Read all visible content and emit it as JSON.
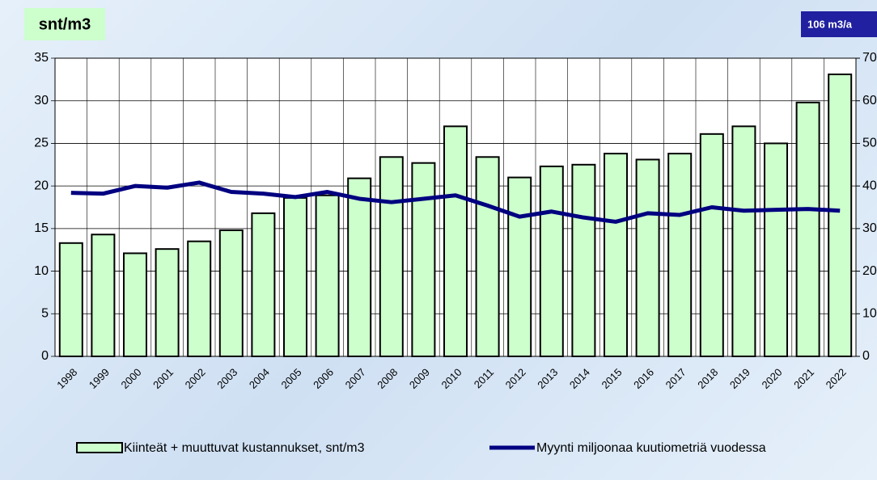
{
  "chart_data": {
    "type": "bar_line",
    "title": "snt/m3",
    "y2_label": "106 m3/a",
    "categories": [
      "1998",
      "1999",
      "2000",
      "2001",
      "2002",
      "2003",
      "2004",
      "2005",
      "2006",
      "2007",
      "2008",
      "2009",
      "2010",
      "2011",
      "2012",
      "2013",
      "2014",
      "2015",
      "2016",
      "2017",
      "2018",
      "2019",
      "2020",
      "2021",
      "2022"
    ],
    "series": [
      {
        "name": "Kiinteät + muuttuvat kustannukset, snt/m3",
        "type": "bar",
        "color": "#ccffcc",
        "values": [
          13.3,
          14.3,
          12.1,
          12.6,
          13.5,
          14.8,
          16.8,
          18.6,
          18.9,
          20.9,
          23.4,
          22.7,
          27.0,
          23.4,
          21.0,
          22.3,
          22.5,
          23.8,
          23.1,
          23.8,
          26.1,
          27.0,
          25.0,
          29.8,
          33.1
        ]
      },
      {
        "name": "Myynti miljoonaa kuutiometriä vuodessa",
        "type": "line",
        "axis": "y2",
        "color": "#000080",
        "values": [
          38.4,
          38.2,
          40.0,
          39.6,
          40.8,
          38.6,
          38.2,
          37.4,
          38.6,
          37.0,
          36.2,
          37.0,
          37.8,
          35.4,
          32.8,
          34.0,
          32.6,
          31.6,
          33.6,
          33.2,
          35.0,
          34.2,
          34.4,
          34.6,
          34.2
        ]
      }
    ],
    "ylim": [
      0,
      35
    ],
    "yticks": [
      0,
      5,
      10,
      15,
      20,
      25,
      30,
      35
    ],
    "y2lim": [
      0,
      70
    ],
    "y2ticks": [
      0,
      10,
      20,
      30,
      40,
      50,
      60,
      70
    ],
    "grid": true
  }
}
